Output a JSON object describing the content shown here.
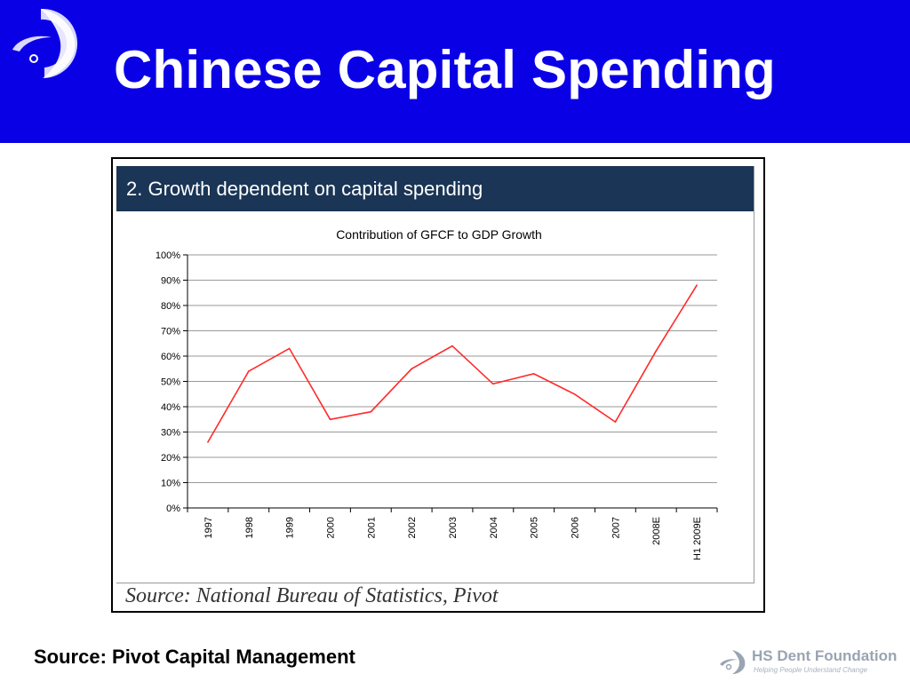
{
  "slide": {
    "title": "Chinese Capital Spending",
    "source_label": "Source: Pivot Capital Management"
  },
  "figure": {
    "banner": "2. Growth dependent on capital spending",
    "source": "Source: National Bureau of Statistics, Pivot"
  },
  "brand": {
    "name": "HS Dent Foundation",
    "tagline": "Helping People Understand Change"
  },
  "colors": {
    "header_bg": "#0a00e6",
    "banner_bg": "#1a3555",
    "line": "#ff2a2a"
  },
  "chart_data": {
    "type": "line",
    "title": "Contribution of GFCF to GDP Growth",
    "xlabel": "",
    "ylabel": "",
    "categories": [
      "1997",
      "1998",
      "1999",
      "2000",
      "2001",
      "2002",
      "2003",
      "2004",
      "2005",
      "2006",
      "2007",
      "2008E",
      "H1 2009E"
    ],
    "series": [
      {
        "values": [
          26,
          54,
          63,
          35,
          38,
          55,
          64,
          49,
          53,
          45,
          34,
          62,
          88
        ]
      }
    ],
    "ylim": [
      0,
      100
    ],
    "yticks": [
      "0%",
      "10%",
      "20%",
      "30%",
      "40%",
      "50%",
      "60%",
      "70%",
      "80%",
      "90%",
      "100%"
    ],
    "grid": true,
    "legend": "none"
  }
}
